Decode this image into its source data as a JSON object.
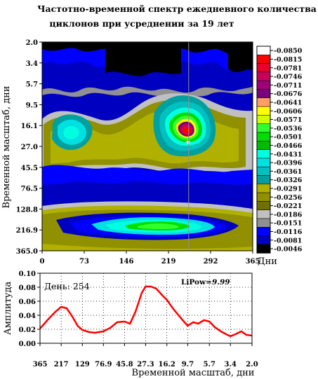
{
  "title_line1": "Частотно-временной спектр ежедневного количества",
  "title_line2": "циклонов при усреднении за 19 лет",
  "top_panel": {
    "ylabel": "Временной масштаб, дни",
    "xlabel": "Дни",
    "y_ticks": [
      "2.0",
      "3.4",
      "5.7",
      "9.5",
      "16.1",
      "27.0",
      "45.5",
      "76.5",
      "128.8",
      "216.9",
      "365.0"
    ],
    "x_ticks": [
      "0",
      "73",
      "146",
      "219",
      "292",
      "365"
    ],
    "xlim": [
      0,
      365
    ],
    "cursor_day": 254
  },
  "legend": {
    "levels": [
      "0.0850",
      "0.0815",
      "0.0781",
      "0.0746",
      "0.0711",
      "0.0676",
      "0.0641",
      "0.0606",
      "0.0571",
      "0.0536",
      "0.0501",
      "0.0466",
      "0.0431",
      "0.0396",
      "0.0361",
      "0.0326",
      "0.0291",
      "0.0256",
      "0.0221",
      "0.0186",
      "0.0151",
      "0.0116",
      "0.0081",
      "0.0046"
    ],
    "colors": [
      "#ffffff",
      "#ff0000",
      "#e8002a",
      "#c8005a",
      "#a00078",
      "#7e0080",
      "#ffa060",
      "#ffff00",
      "#d0ff00",
      "#30ff30",
      "#00dd00",
      "#00bb00",
      "#00ffe0",
      "#00e0e0",
      "#00c0c0",
      "#00a0a0",
      "#b0b000",
      "#909000",
      "#707000",
      "#c0c0c0",
      "#909090",
      "#0000ff",
      "#0000c0",
      "#000000"
    ]
  },
  "bottom_panel": {
    "ylabel": "Амплитуда",
    "xlabel": "Временной масштаб, дни",
    "day_label": "День: 254",
    "lipow_label": "LiPow=",
    "lipow_value": "9.99",
    "x_ticks": [
      "365",
      "217",
      "129",
      "76.9",
      "45.8",
      "27.3",
      "16.2",
      "9.7",
      "5.7",
      "3.4",
      "2.0"
    ],
    "y_ticks": [
      "0.00",
      "0.02",
      "0.04",
      "0.06",
      "0.08",
      "0.10"
    ]
  },
  "chart_data": [
    {
      "type": "heatmap",
      "title": "Частотно-временной спектр ежедневного количества циклонов при усреднении за 19 лет",
      "xlabel": "Дни",
      "ylabel": "Временной масштаб, дни",
      "xlim": [
        0,
        365
      ],
      "ylim": [
        2.0,
        365.0
      ],
      "y_scale": "log",
      "colorbar_levels": [
        0.0046,
        0.0081,
        0.0116,
        0.0151,
        0.0186,
        0.0221,
        0.0256,
        0.0291,
        0.0326,
        0.0361,
        0.0396,
        0.0431,
        0.0466,
        0.0501,
        0.0536,
        0.0571,
        0.0606,
        0.0641,
        0.0676,
        0.0711,
        0.0746,
        0.0781,
        0.0815,
        0.085
      ],
      "peaks": [
        {
          "day": 254,
          "scale": 27.0,
          "value": 0.085
        },
        {
          "day": 40,
          "scale": 20.0,
          "value": 0.045
        },
        {
          "day": 190,
          "scale": 250.0,
          "value": 0.055
        }
      ]
    },
    {
      "type": "line",
      "title": "День: 254",
      "xlabel": "Временной масштаб, дни",
      "ylabel": "Амплитуда",
      "ylim": [
        0.0,
        0.1
      ],
      "x_scale": "log-reversed",
      "grid": true,
      "series": [
        {
          "x": [
            365,
            300,
            250,
            217,
            190,
            165,
            145,
            129,
            110,
            95,
            76.9,
            65,
            55,
            45.8,
            40,
            35,
            30,
            27.3,
            24,
            21,
            18,
            16.2,
            14,
            12,
            10.5,
            9.7,
            8.5,
            7.5,
            6.5,
            5.7,
            5.0,
            4.3,
            3.8,
            3.4,
            3.0,
            2.6,
            2.3,
            2.0
          ],
          "y": [
            0.021,
            0.034,
            0.045,
            0.052,
            0.05,
            0.038,
            0.025,
            0.019,
            0.016,
            0.015,
            0.017,
            0.022,
            0.03,
            0.031,
            0.028,
            0.045,
            0.072,
            0.081,
            0.081,
            0.078,
            0.068,
            0.062,
            0.05,
            0.039,
            0.03,
            0.025,
            0.03,
            0.028,
            0.033,
            0.031,
            0.023,
            0.017,
            0.013,
            0.01,
            0.013,
            0.017,
            0.012,
            0.011
          ]
        }
      ]
    }
  ]
}
